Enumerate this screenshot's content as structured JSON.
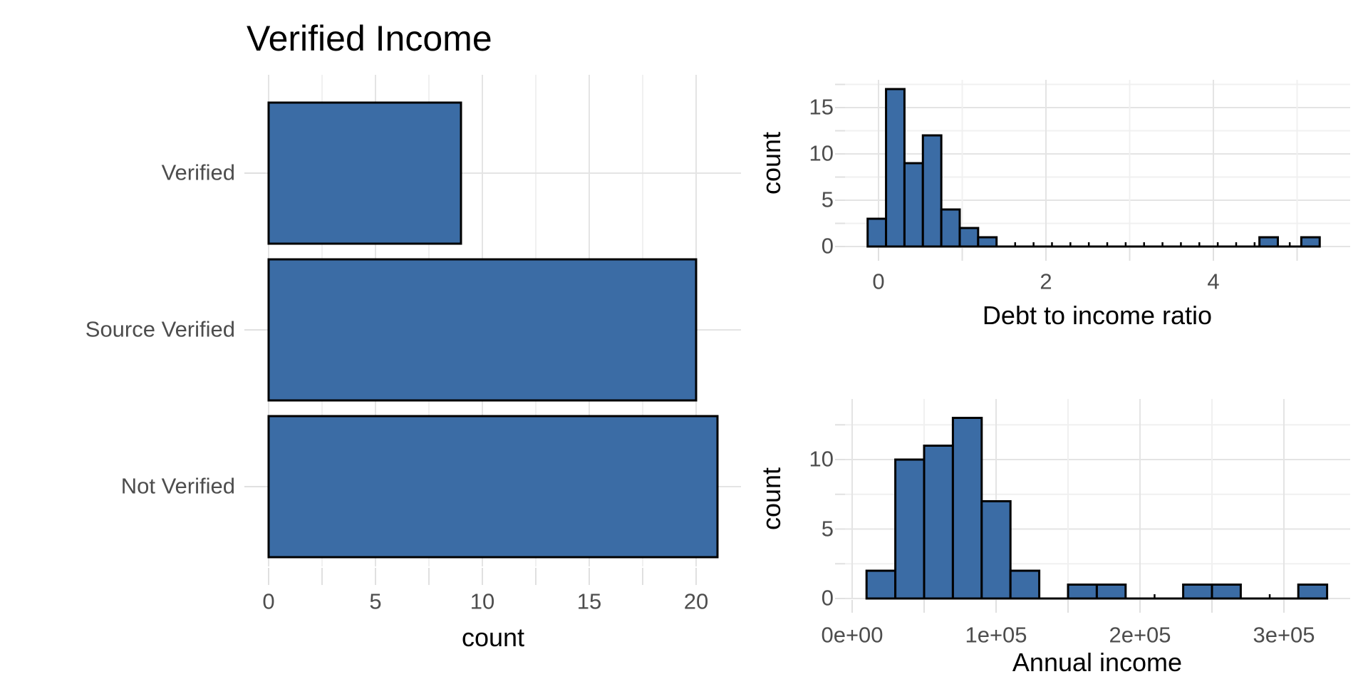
{
  "styles": {
    "background": "#FFFFFF",
    "bar_fill": "#3B6CA5",
    "bar_border": "#000000",
    "grid_major": "#E4E4E4",
    "grid_minor": "#F0F0F0",
    "axis_tick_color": "#E0E0E0",
    "axis_text_color": "#4D4D4D",
    "title_color": "#000000"
  },
  "chart_data": [
    {
      "id": "verified-income-bar",
      "type": "bar",
      "orientation": "horizontal",
      "title": "Verified Income",
      "xlabel": "count",
      "categories": [
        "Verified",
        "Source Verified",
        "Not Verified"
      ],
      "values": [
        9,
        20,
        21
      ],
      "x_ticks": [
        0,
        5,
        10,
        15,
        20
      ],
      "x_minor_ticks": [
        2.5,
        7.5,
        12.5,
        17.5
      ],
      "xlim": [
        -1.07,
        22.1
      ],
      "grid": true,
      "legend": false
    },
    {
      "id": "debt-to-income-histogram",
      "type": "histogram",
      "xlabel": "Debt to income ratio",
      "ylabel": "count",
      "bin_width": 0.22,
      "bins": [
        {
          "x0": -0.13,
          "count": 3
        },
        {
          "x0": 0.09,
          "count": 17
        },
        {
          "x0": 0.31,
          "count": 9
        },
        {
          "x0": 0.53,
          "count": 12
        },
        {
          "x0": 0.75,
          "count": 4
        },
        {
          "x0": 0.97,
          "count": 2
        },
        {
          "x0": 1.19,
          "count": 1
        },
        {
          "x0": 4.55,
          "count": 1
        },
        {
          "x0": 5.05,
          "count": 1
        }
      ],
      "total_count": 50,
      "x_ticks": [
        0,
        2,
        4
      ],
      "x_minor_ticks": [
        1,
        3,
        5
      ],
      "y_ticks": [
        0,
        5,
        10,
        15
      ],
      "y_minor_ticks": [
        2.5,
        7.5,
        12.5,
        17.5
      ],
      "xlim": [
        -0.53,
        5.63
      ],
      "ylim": [
        0,
        18
      ],
      "grid": true
    },
    {
      "id": "annual-income-histogram",
      "type": "histogram",
      "xlabel": "Annual income",
      "ylabel": "count",
      "bin_width": 20000,
      "bins": [
        {
          "x0": 10000,
          "count": 2
        },
        {
          "x0": 30000,
          "count": 10
        },
        {
          "x0": 50000,
          "count": 11
        },
        {
          "x0": 70000,
          "count": 13
        },
        {
          "x0": 90000,
          "count": 7
        },
        {
          "x0": 110000,
          "count": 2
        },
        {
          "x0": 150000,
          "count": 1
        },
        {
          "x0": 170000,
          "count": 1
        },
        {
          "x0": 230000,
          "count": 1
        },
        {
          "x0": 250000,
          "count": 1
        },
        {
          "x0": 310000,
          "count": 1
        }
      ],
      "total_count": 50,
      "x_tick_values": [
        0,
        100000,
        200000,
        300000
      ],
      "x_tick_labels": [
        "0e+00",
        "1e+05",
        "2e+05",
        "3e+05"
      ],
      "x_minor_ticks": [
        50000,
        150000,
        250000
      ],
      "y_ticks": [
        0,
        5,
        10
      ],
      "y_minor_ticks": [
        2.5,
        7.5,
        12.5
      ],
      "xlim": [
        -5000,
        346000
      ],
      "ylim": [
        0,
        14.4
      ],
      "grid": true
    }
  ]
}
